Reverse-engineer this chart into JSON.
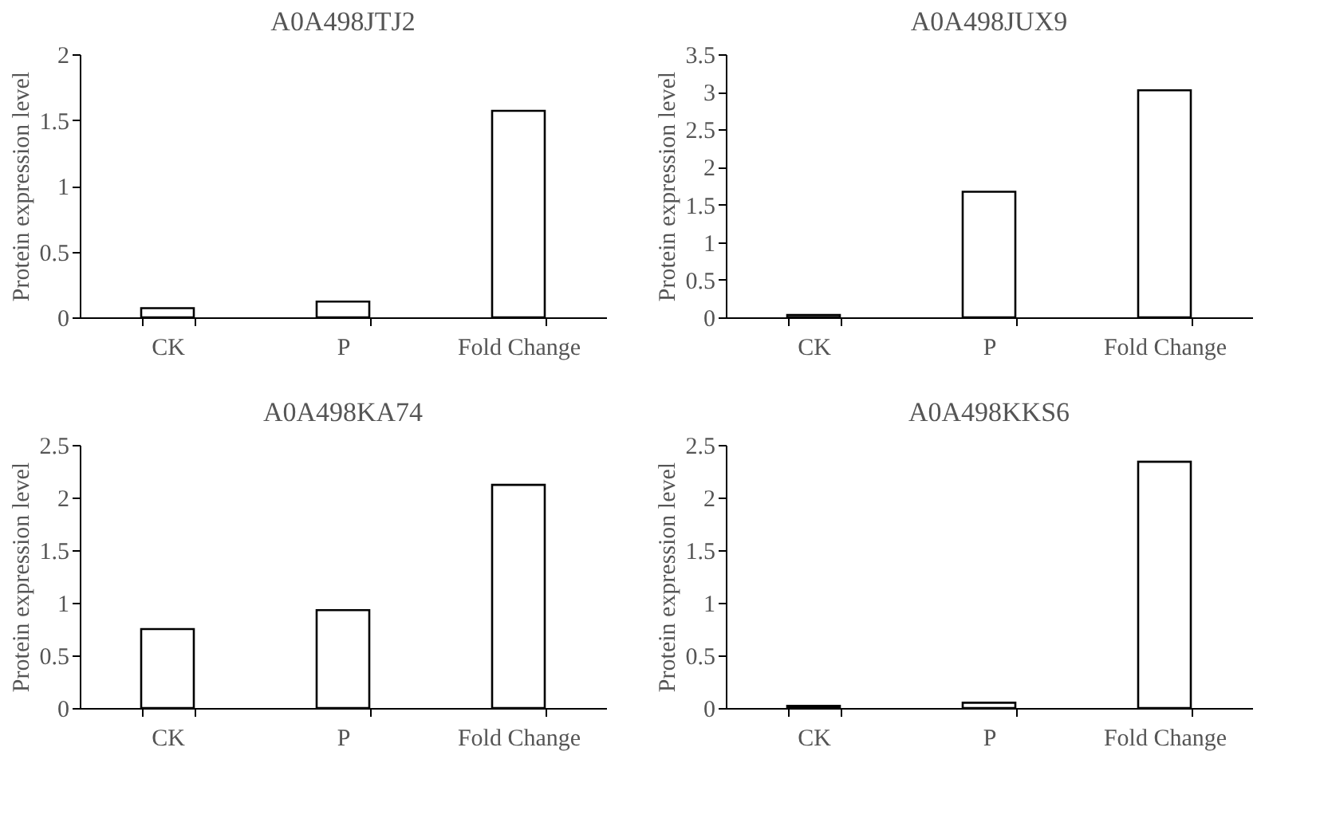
{
  "chart_data": [
    {
      "type": "bar",
      "title": "A0A498JTJ2",
      "ylabel": "Protein expression level",
      "categories": [
        "CK",
        "P",
        "Fold Change"
      ],
      "values": [
        0.07,
        0.12,
        1.57
      ],
      "color": "#ffffff",
      "ylim": [
        0,
        2
      ],
      "yticks": [
        0,
        0.5,
        1,
        1.5,
        2
      ]
    },
    {
      "type": "bar",
      "title": "A0A498JUX9",
      "ylabel": "Protein expression level",
      "categories": [
        "CK",
        "P",
        "Fold Change"
      ],
      "values": [
        0.03,
        1.67,
        3.02
      ],
      "color": "#ffffff",
      "ylim": [
        0,
        3.5
      ],
      "yticks": [
        0,
        0.5,
        1,
        1.5,
        2,
        2.5,
        3,
        3.5
      ]
    },
    {
      "type": "bar",
      "title": "A0A498KA74",
      "ylabel": "Protein expression level",
      "categories": [
        "CK",
        "P",
        "Fold Change"
      ],
      "values": [
        0.75,
        0.93,
        2.12
      ],
      "color": "#ffffff",
      "ylim": [
        0,
        2.5
      ],
      "yticks": [
        0,
        0.5,
        1,
        1.5,
        2,
        2.5
      ]
    },
    {
      "type": "bar",
      "title": "A0A498KKS6",
      "ylabel": "Protein expression level",
      "categories": [
        "CK",
        "P",
        "Fold Change"
      ],
      "values": [
        0.02,
        0.05,
        2.34
      ],
      "color": "#ffffff",
      "ylim": [
        0,
        2.5
      ],
      "yticks": [
        0,
        0.5,
        1,
        1.5,
        2,
        2.5
      ]
    }
  ]
}
